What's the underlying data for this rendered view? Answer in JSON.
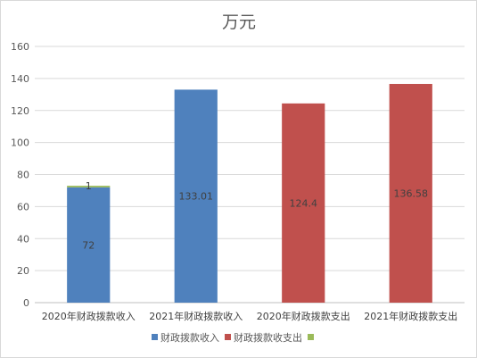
{
  "chart_data": {
    "type": "bar",
    "title": "万元",
    "categories": [
      "2020年财政拨款收入",
      "2021年财政拨款收入",
      "2020年财政拨款支出",
      "2021年财政拨款支出"
    ],
    "series": [
      {
        "name": "财政拨款收入",
        "color": "#4f81bd",
        "values": [
          72,
          133.01,
          null,
          null
        ],
        "labels": [
          "72",
          "133.01",
          "",
          ""
        ]
      },
      {
        "name": "财政拨款收支出",
        "color": "#c0504d",
        "values": [
          null,
          null,
          124.4,
          136.58
        ],
        "labels": [
          "",
          "",
          "124.4",
          "136.58"
        ]
      },
      {
        "name": "",
        "color": "#9bbb59",
        "values": [
          1,
          null,
          null,
          null
        ],
        "labels": [
          "1",
          "",
          "",
          ""
        ]
      }
    ],
    "stacked": true,
    "ylim": [
      0,
      160
    ],
    "yticks": [
      0,
      20,
      40,
      60,
      80,
      100,
      120,
      140,
      160
    ],
    "grid": true,
    "legend": "bottom"
  }
}
